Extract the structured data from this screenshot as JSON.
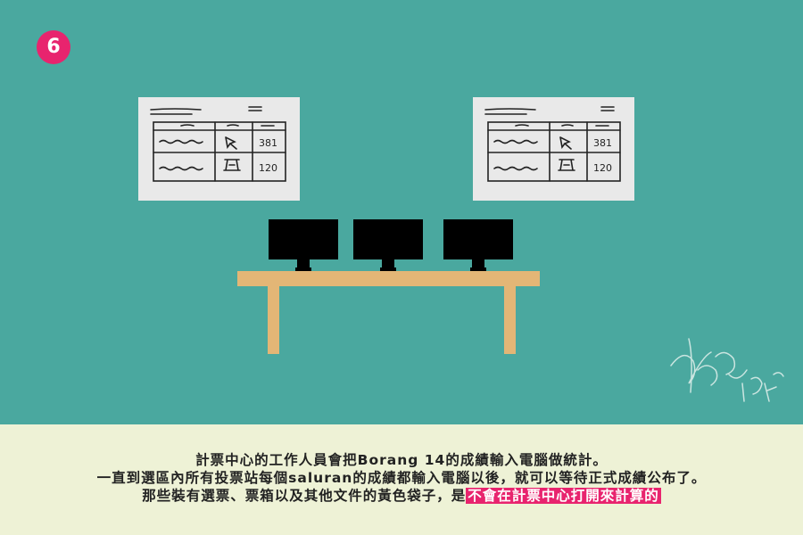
{
  "badge": {
    "number": "6",
    "color": "#e8246e"
  },
  "boards": [
    {
      "values": [
        "381",
        "120"
      ]
    },
    {
      "values": [
        "381",
        "120"
      ]
    }
  ],
  "caption": {
    "line1": "計票中心的工作人員會把Borang 14的成績輸入電腦做統計。",
    "line2": "一直到選區內所有投票站每個saluran的成績都輸入電腦以後，就可以等待正式成績公布了。",
    "line3_prefix": "那些裝有選票、票箱以及其他文件的黃色袋子，是",
    "line3_highlight": "不會在計票中心打開來計算的"
  },
  "colors": {
    "background": "#4aa89f",
    "caption_bg": "#eef2d6",
    "table": "#e3b676",
    "highlight": "#e8246e"
  }
}
